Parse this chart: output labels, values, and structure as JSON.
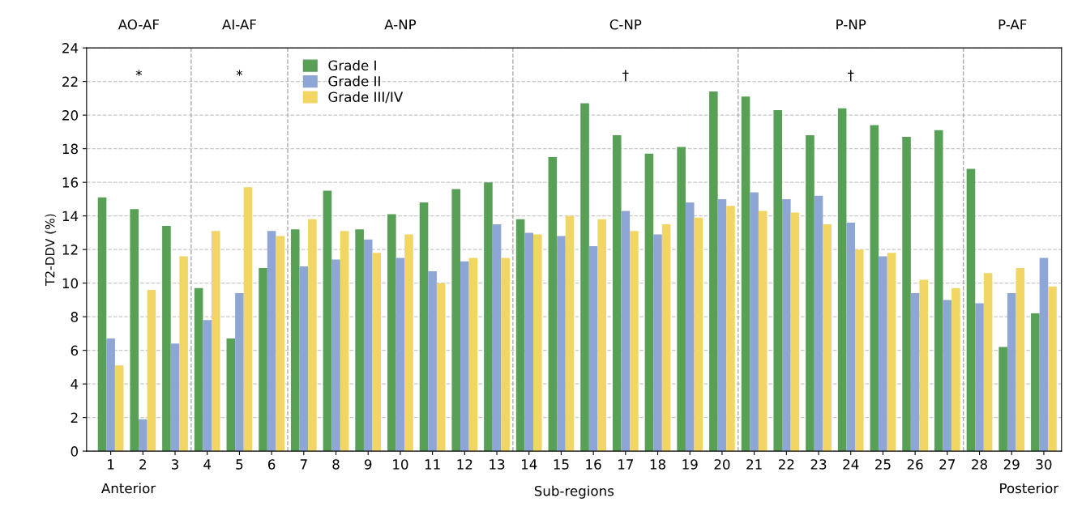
{
  "chart_data": {
    "type": "bar",
    "xlabel": "Sub-regions",
    "ylabel": "T2-DDV (%)",
    "x": [
      1,
      2,
      3,
      4,
      5,
      6,
      7,
      8,
      9,
      10,
      11,
      12,
      13,
      14,
      15,
      16,
      17,
      18,
      19,
      20,
      21,
      22,
      23,
      24,
      25,
      26,
      27,
      28,
      29,
      30
    ],
    "xlim": [
      0.25,
      30.55
    ],
    "xticks": [
      1,
      2,
      3,
      4,
      5,
      6,
      7,
      8,
      9,
      10,
      11,
      12,
      13,
      14,
      15,
      16,
      17,
      18,
      19,
      20,
      21,
      22,
      23,
      24,
      25,
      26,
      27,
      28,
      29,
      30
    ],
    "ylim": [
      0,
      24
    ],
    "yticks": [
      0,
      2,
      4,
      6,
      8,
      10,
      12,
      14,
      16,
      18,
      20,
      22,
      24
    ],
    "series": [
      {
        "name": "Grade I",
        "color": "#57a055",
        "values": [
          15.1,
          14.4,
          13.4,
          9.7,
          6.7,
          10.9,
          13.2,
          15.5,
          13.2,
          14.1,
          14.8,
          15.6,
          16.0,
          13.8,
          17.5,
          20.7,
          18.8,
          17.7,
          18.1,
          21.4,
          21.1,
          20.3,
          18.8,
          20.4,
          19.4,
          18.7,
          19.1,
          16.8,
          6.2,
          8.2
        ]
      },
      {
        "name": "Grade II",
        "color": "#8ea6d6",
        "values": [
          6.7,
          1.9,
          6.4,
          7.8,
          9.4,
          13.1,
          11.0,
          11.4,
          12.6,
          11.5,
          10.7,
          11.3,
          13.5,
          13.0,
          12.8,
          12.2,
          14.3,
          12.9,
          14.8,
          15.0,
          15.4,
          15.0,
          15.2,
          13.6,
          11.6,
          9.4,
          9.0,
          8.8,
          9.4,
          11.5
        ]
      },
      {
        "name": "Grade III/IV",
        "color": "#f1d666",
        "values": [
          5.1,
          9.6,
          11.6,
          13.1,
          15.7,
          12.8,
          13.8,
          13.1,
          11.8,
          12.9,
          10.0,
          11.5,
          11.5,
          12.9,
          14.0,
          13.8,
          13.1,
          13.5,
          13.9,
          14.6,
          14.3,
          14.2,
          13.5,
          12.0,
          11.8,
          10.2,
          9.7,
          10.6,
          10.9,
          9.8
        ]
      }
    ],
    "ref_lines": [
      {
        "axis": "x",
        "value": 3.5,
        "color": "#aaaaaa",
        "line_style": "dashed"
      },
      {
        "axis": "x",
        "value": 6.5,
        "color": "#aaaaaa",
        "line_style": "dashed"
      },
      {
        "axis": "x",
        "value": 13.5,
        "color": "#aaaaaa",
        "line_style": "dashed"
      },
      {
        "axis": "x",
        "value": 20.5,
        "color": "#aaaaaa",
        "line_style": "dashed"
      },
      {
        "axis": "x",
        "value": 27.5,
        "color": "#aaaaaa",
        "line_style": "dashed"
      }
    ],
    "annotations": [
      "AO-AF",
      "AI-AF",
      "A-NP",
      "C-NP",
      "P-NP",
      "P-AF",
      "*",
      "*",
      "†",
      "†",
      "Anterior",
      "Posterior"
    ],
    "grid": "y",
    "legend": "top left"
  }
}
